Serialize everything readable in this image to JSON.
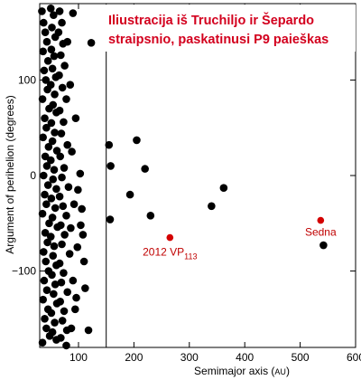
{
  "overlay_caption": {
    "line1": "Iliustracija iš Truchiljo ir Šepardo",
    "line2": "straipsnio, paskatinusi P9 paieškas"
  },
  "colors": {
    "points": "#000000",
    "highlight": "#d40000",
    "caption": "#d3001e"
  },
  "chart_data": {
    "type": "scatter",
    "title": "",
    "xlabel": "Semimajor axis",
    "xlabel_unit": "AU",
    "ylabel": "Argument of perihelion (degrees)",
    "xlim": [
      30,
      600
    ],
    "ylim": [
      -180,
      180
    ],
    "xticks": [
      100,
      200,
      300,
      400,
      500,
      600
    ],
    "yticks": [
      -100,
      0,
      100
    ],
    "grid": false,
    "reference_line_x": 150,
    "series": [
      {
        "color": "#000000",
        "points": [
          [
            34,
            172
          ],
          [
            37,
            160
          ],
          [
            40,
            150
          ],
          [
            43,
            140
          ],
          [
            36,
            130
          ],
          [
            45,
            120
          ],
          [
            38,
            110
          ],
          [
            41,
            100
          ],
          [
            44,
            90
          ],
          [
            35,
            80
          ],
          [
            47,
            70
          ],
          [
            39,
            60
          ],
          [
            42,
            50
          ],
          [
            36,
            40
          ],
          [
            46,
            30
          ],
          [
            40,
            20
          ],
          [
            43,
            10
          ],
          [
            37,
            0
          ],
          [
            45,
            -10
          ],
          [
            39,
            -20
          ],
          [
            42,
            -30
          ],
          [
            35,
            -40
          ],
          [
            47,
            -50
          ],
          [
            40,
            -60
          ],
          [
            44,
            -70
          ],
          [
            37,
            -80
          ],
          [
            41,
            -90
          ],
          [
            46,
            -100
          ],
          [
            38,
            -110
          ],
          [
            43,
            -120
          ],
          [
            36,
            -130
          ],
          [
            45,
            -140
          ],
          [
            39,
            -150
          ],
          [
            42,
            -160
          ],
          [
            48,
            -168
          ],
          [
            35,
            -175
          ],
          [
            50,
            175
          ],
          [
            55,
            168
          ],
          [
            52,
            155
          ],
          [
            58,
            145
          ],
          [
            51,
            132
          ],
          [
            56,
            125
          ],
          [
            53,
            112
          ],
          [
            59,
            103
          ],
          [
            50,
            95
          ],
          [
            57,
            85
          ],
          [
            54,
            74
          ],
          [
            60,
            66
          ],
          [
            51,
            55
          ],
          [
            57,
            45
          ],
          [
            53,
            36
          ],
          [
            61,
            26
          ],
          [
            50,
            16
          ],
          [
            56,
            6
          ],
          [
            54,
            -4
          ],
          [
            60,
            -14
          ],
          [
            51,
            -24
          ],
          [
            58,
            -34
          ],
          [
            53,
            -44
          ],
          [
            62,
            -54
          ],
          [
            50,
            -64
          ],
          [
            56,
            -74
          ],
          [
            54,
            -84
          ],
          [
            60,
            -94
          ],
          [
            52,
            -104
          ],
          [
            58,
            -114
          ],
          [
            55,
            -124
          ],
          [
            61,
            -134
          ],
          [
            51,
            -144
          ],
          [
            57,
            -154
          ],
          [
            53,
            -164
          ],
          [
            60,
            -172
          ],
          [
            66,
            172
          ],
          [
            70,
            160
          ],
          [
            64,
            150
          ],
          [
            72,
            138
          ],
          [
            68,
            126
          ],
          [
            75,
            115
          ],
          [
            65,
            105
          ],
          [
            71,
            92
          ],
          [
            78,
            80
          ],
          [
            66,
            68
          ],
          [
            73,
            56
          ],
          [
            69,
            44
          ],
          [
            80,
            32
          ],
          [
            67,
            20
          ],
          [
            74,
            8
          ],
          [
            70,
            -2
          ],
          [
            82,
            -12
          ],
          [
            66,
            -22
          ],
          [
            72,
            -32
          ],
          [
            78,
            -42
          ],
          [
            68,
            -52
          ],
          [
            75,
            -62
          ],
          [
            70,
            -72
          ],
          [
            84,
            -82
          ],
          [
            66,
            -92
          ],
          [
            73,
            -102
          ],
          [
            69,
            -112
          ],
          [
            80,
            -122
          ],
          [
            67,
            -132
          ],
          [
            74,
            -142
          ],
          [
            71,
            -152
          ],
          [
            79,
            -162
          ],
          [
            68,
            -170
          ],
          [
            90,
            170
          ],
          [
            85,
            95
          ],
          [
            95,
            60
          ],
          [
            88,
            25
          ],
          [
            92,
            -30
          ],
          [
            86,
            -55
          ],
          [
            98,
            -75
          ],
          [
            90,
            -110
          ],
          [
            94,
            -140
          ],
          [
            87,
            -160
          ],
          [
            99,
            -15
          ],
          [
            103,
            2
          ],
          [
            80,
            140
          ],
          [
            78,
            -178
          ],
          [
            96,
            -128
          ],
          [
            123,
            139
          ],
          [
            118,
            -162
          ],
          [
            112,
            -118
          ],
          [
            110,
            -90
          ],
          [
            108,
            -62
          ],
          [
            106,
            -35
          ],
          [
            104,
            -52
          ],
          [
            155,
            32
          ],
          [
            158,
            10
          ],
          [
            157,
            -46
          ],
          [
            193,
            -20
          ],
          [
            205,
            37
          ],
          [
            220,
            7
          ],
          [
            230,
            -42
          ],
          [
            340,
            -32
          ],
          [
            362,
            -13
          ],
          [
            542,
            -73
          ]
        ]
      },
      {
        "color": "#d40000",
        "points": [
          [
            265,
            -65
          ],
          [
            537,
            -47
          ]
        ],
        "labels": [
          "2012 VP113",
          "Sedna"
        ]
      }
    ]
  }
}
